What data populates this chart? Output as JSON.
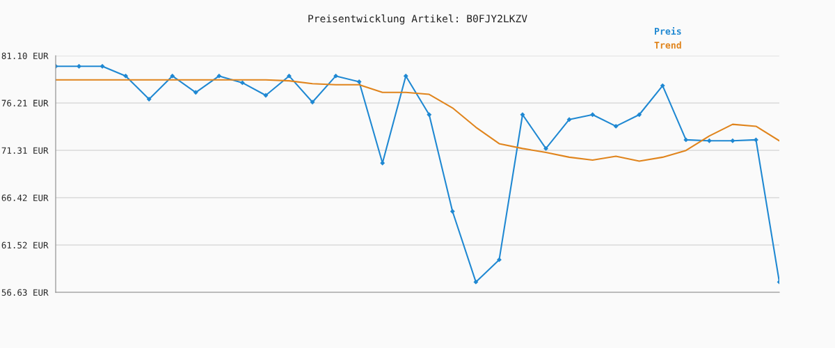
{
  "chart_data": {
    "type": "line",
    "title": "Preisentwicklung Artikel: B0FJY2LKZV",
    "categories": [
      null,
      null,
      null,
      null,
      null,
      null,
      null,
      null,
      null,
      null,
      null,
      null,
      null,
      null,
      null,
      null,
      null,
      null,
      null,
      null,
      null,
      null,
      null,
      null,
      null,
      null,
      null,
      null,
      null,
      null,
      null,
      null
    ],
    "series": [
      {
        "name": "Preis",
        "color": "#1f88d2",
        "marker": "diamond",
        "values": [
          80.0,
          80.0,
          80.0,
          79.0,
          76.6,
          79.0,
          77.3,
          79.0,
          78.3,
          77.0,
          79.0,
          76.3,
          79.0,
          78.4,
          70.0,
          79.0,
          75.0,
          65.0,
          57.7,
          60.0,
          75.0,
          71.5,
          74.5,
          75.0,
          73.8,
          75.0,
          78.0,
          72.4,
          72.3,
          72.3,
          72.4,
          57.7
        ]
      },
      {
        "name": "Trend",
        "color": "#e0841c",
        "marker": "none",
        "values": [
          78.6,
          78.6,
          78.6,
          78.6,
          78.6,
          78.6,
          78.6,
          78.6,
          78.6,
          78.6,
          78.5,
          78.2,
          78.1,
          78.1,
          77.3,
          77.3,
          77.1,
          75.7,
          73.7,
          72.0,
          71.5,
          71.1,
          70.6,
          70.3,
          70.7,
          70.2,
          70.6,
          71.3,
          72.8,
          74.0,
          73.8,
          72.3
        ]
      }
    ],
    "ylim": [
      56.63,
      81.1
    ],
    "yticks": [
      {
        "value": 56.63,
        "label": "56.63 EUR"
      },
      {
        "value": 61.52,
        "label": "61.52 EUR"
      },
      {
        "value": 66.42,
        "label": "66.42 EUR"
      },
      {
        "value": 71.31,
        "label": "71.31 EUR"
      },
      {
        "value": 76.21,
        "label": "76.21 EUR"
      },
      {
        "value": 81.1,
        "label": "81.10 EUR"
      }
    ],
    "grid": "y",
    "legend": "top right",
    "tick_labels": "y"
  }
}
